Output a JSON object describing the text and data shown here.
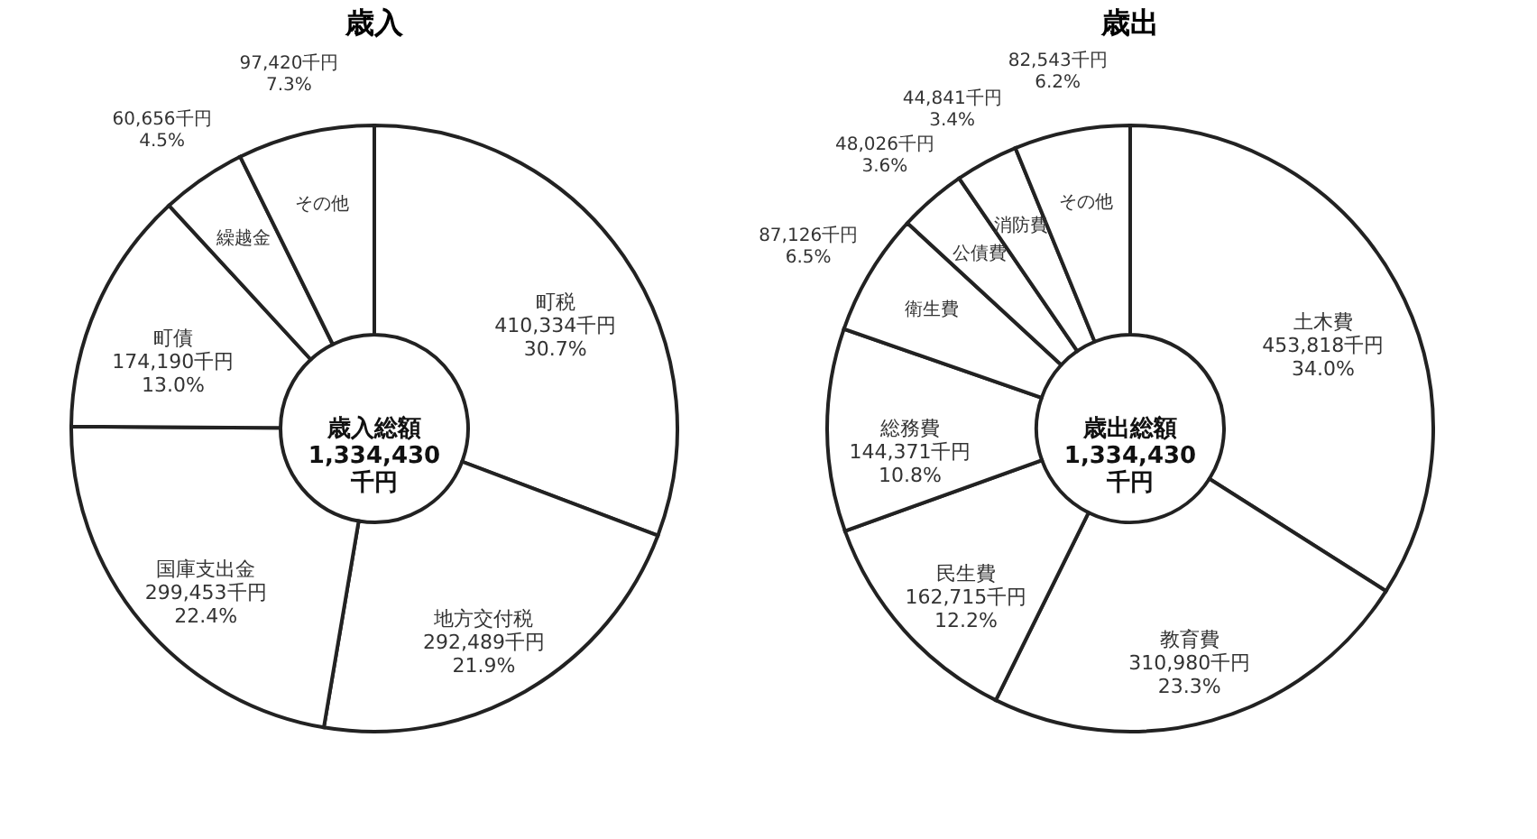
{
  "chart_data": [
    {
      "type": "donut",
      "title": "歳入",
      "categories": [
        "町税",
        "地方交付税",
        "国庫支出金",
        "町債",
        "繰越金",
        "その他"
      ],
      "values": [
        410334,
        292489,
        299453,
        174190,
        60656,
        97420
      ],
      "colors": [
        "#ffffff",
        "#ffffff",
        "#ffffff",
        "#ffffff",
        "#ffffff",
        "#ffffff"
      ],
      "value_labels": [
        "410,334千円\n30.7%",
        "292,489千円\n21.9%",
        "299,453千円\n22.4%",
        "174,190千円\n13.0%",
        "60,656千円\n4.5%",
        "97,420千円\n7.3%"
      ],
      "annotations": [
        "歳入総額\n1,334,430\n千円"
      ]
    },
    {
      "type": "donut",
      "title": "歳出",
      "categories": [
        "土木費",
        "教育費",
        "民生費",
        "総務費",
        "衛生費",
        "公債費",
        "消防費",
        "その他"
      ],
      "values": [
        453818,
        310980,
        162715,
        144371,
        87126,
        48026,
        44841,
        82543
      ],
      "colors": [
        "#ffffff",
        "#ffffff",
        "#ffffff",
        "#ffffff",
        "#ffffff",
        "#ffffff",
        "#ffffff",
        "#ffffff"
      ],
      "value_labels": [
        "453,818千円\n34.0%",
        "310,980千円\n23.3%",
        "162,715千円\n12.2%",
        "144,371千円\n10.8%",
        "87,126千円\n6.5%",
        "48,026千円\n3.6%",
        "44,841千円\n3.4%",
        "82,543千円\n6.2%"
      ],
      "annotations": [
        "歳出総額\n1,334,430\n千円"
      ]
    }
  ]
}
